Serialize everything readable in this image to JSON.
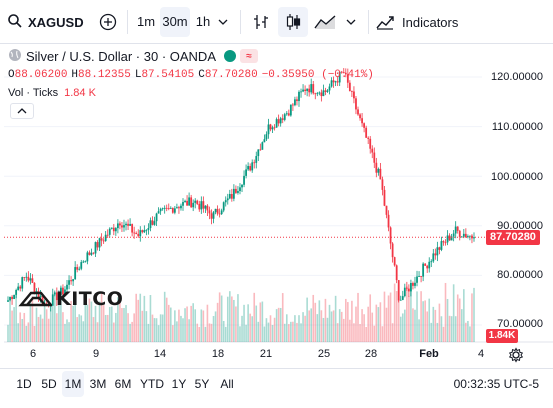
{
  "toolbar": {
    "symbol": "XAGUSD",
    "intervals": [
      "1m",
      "30m",
      "1h"
    ],
    "active_interval": "30m",
    "indicators_label": "Indicators"
  },
  "legend": {
    "title": "Silver / U.S. Dollar · 30 · OANDA",
    "o_label": "O",
    "o_value": "88.06200",
    "h_label": "H",
    "h_value": "88.12355",
    "l_label": "L",
    "l_value": "87.54105",
    "c_label": "C",
    "c_value": "87.70280",
    "change": "−0.35950 (−0.41%)",
    "vol_label": "Vol · Ticks",
    "vol_value": "1.84 K",
    "badge": "≈"
  },
  "price_axis": {
    "labels": [
      "120.00000",
      "110.00000",
      "100.00000",
      "90.00000",
      "80.00000",
      "70.00000"
    ],
    "last_price": "87.70280",
    "last_volume": "1.84K"
  },
  "time_axis": {
    "labels": [
      {
        "text": "6",
        "bold": false
      },
      {
        "text": "9",
        "bold": false
      },
      {
        "text": "14",
        "bold": false
      },
      {
        "text": "18",
        "bold": false
      },
      {
        "text": "21",
        "bold": false
      },
      {
        "text": "25",
        "bold": false
      },
      {
        "text": "28",
        "bold": false
      },
      {
        "text": "Feb",
        "bold": true
      },
      {
        "text": "4",
        "bold": false
      }
    ]
  },
  "logo_text": "KITCO",
  "ranges": [
    "1D",
    "5D",
    "1M",
    "3M",
    "6M",
    "YTD",
    "1Y",
    "5Y",
    "All"
  ],
  "active_range": "1M",
  "clock": "00:32:35 UTC-5",
  "colors": {
    "up": "#089981",
    "down": "#f23645",
    "accent": "#2962ff"
  },
  "chart_data": {
    "type": "candlestick",
    "ylim": [
      68,
      124
    ],
    "keypoints": [
      {
        "d": "6",
        "price": 75
      },
      {
        "d": "7",
        "price": 80
      },
      {
        "d": "8",
        "price": 74
      },
      {
        "d": "9",
        "price": 77
      },
      {
        "d": "12",
        "price": 83
      },
      {
        "d": "14",
        "price": 87
      },
      {
        "d": "15",
        "price": 91
      },
      {
        "d": "16",
        "price": 88
      },
      {
        "d": "18",
        "price": 92
      },
      {
        "d": "19",
        "price": 94
      },
      {
        "d": "20",
        "price": 95
      },
      {
        "d": "21",
        "price": 92
      },
      {
        "d": "22",
        "price": 96
      },
      {
        "d": "23",
        "price": 102
      },
      {
        "d": "25",
        "price": 110
      },
      {
        "d": "27",
        "price": 113
      },
      {
        "d": "28",
        "price": 118
      },
      {
        "d": "29",
        "price": 117
      },
      {
        "d": "30",
        "price": 121
      },
      {
        "d": "31",
        "price": 110
      },
      {
        "d": "Feb 1",
        "price": 99
      },
      {
        "d": "Feb 2",
        "price": 75
      },
      {
        "d": "Feb 3",
        "price": 80
      },
      {
        "d": "Feb 3",
        "price": 85
      },
      {
        "d": "4",
        "price": 89
      },
      {
        "d": "4",
        "price": 87.7
      }
    ]
  }
}
